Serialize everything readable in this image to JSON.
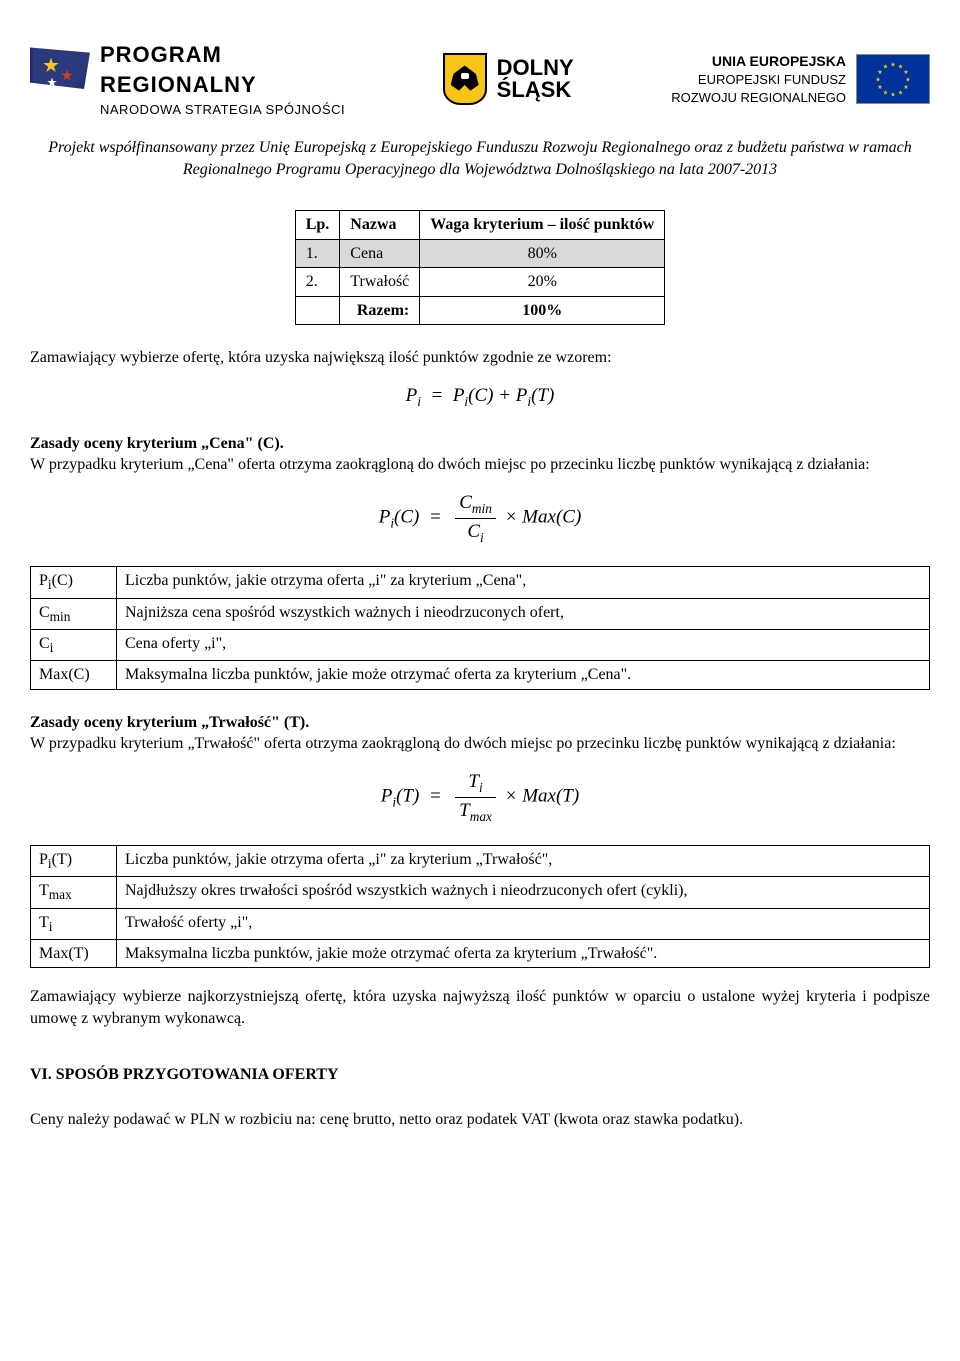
{
  "header": {
    "program": {
      "line1": "PROGRAM",
      "line2": "REGIONALNY",
      "line3": "NARODOWA STRATEGIA SPÓJNOŚCI"
    },
    "dolny_slask": {
      "line1": "DOLNY",
      "line2": "ŚLĄSK"
    },
    "ue": {
      "line1": "UNIA EUROPEJSKA",
      "line2": "EUROPEJSKI FUNDUSZ",
      "line3": "ROZWOJU REGIONALNEGO"
    }
  },
  "funding_note": "Projekt współfinansowany przez Unię Europejską z Europejskiego Funduszu Rozwoju Regionalnego oraz z budżetu państwa w ramach Regionalnego Programu Operacyjnego dla Województwa Dolnośląskiego na lata 2007-2013",
  "criteria_table": {
    "headers": [
      "Lp.",
      "Nazwa",
      "Waga kryterium – ilość punktów"
    ],
    "rows": [
      {
        "lp": "1.",
        "nazwa": "Cena",
        "waga": "80%",
        "shaded": true
      },
      {
        "lp": "2.",
        "nazwa": "Trwałość",
        "waga": "20%",
        "shaded": false
      }
    ],
    "total_label": "Razem:",
    "total_value": "100%"
  },
  "intro_para": "Zamawiający wybierze ofertę, która uzyska największą ilość punktów zgodnie ze wzorem:",
  "formula_total": {
    "lhs": "P",
    "lhs_sub": "i",
    "rhs1": "P",
    "rhs1_sub": "i",
    "rhs1_arg": "(C)",
    "plus": " + ",
    "rhs2": "P",
    "rhs2_sub": "i",
    "rhs2_arg": "(T)"
  },
  "cena": {
    "heading": "Zasady oceny kryterium „Cena\" (C).",
    "para": "W przypadku kryterium „Cena\" oferta otrzyma zaokrągloną do dwóch miejsc po przecinku liczbę punktów wynikającą z działania:",
    "formula": {
      "lhs": "P",
      "lhs_sub": "i",
      "lhs_arg": "(C)",
      "num": "C",
      "num_sub": "min",
      "den": "C",
      "den_sub": "i",
      "times": " × ",
      "max": "Max",
      "max_arg": "(C)"
    },
    "defs": [
      {
        "sym": "Pi(C)",
        "sym_html": "P<sub>i</sub>(C)",
        "desc": "Liczba punktów, jakie otrzyma oferta „i\" za kryterium „Cena\","
      },
      {
        "sym": "Cmin",
        "sym_html": "C<sub>min</sub>",
        "desc": "Najniższa cena spośród wszystkich ważnych i nieodrzuconych ofert,"
      },
      {
        "sym": "Ci",
        "sym_html": "C<sub>i</sub>",
        "desc": "Cena oferty „i\","
      },
      {
        "sym": "Max(C)",
        "sym_html": "Max(C)",
        "desc": "Maksymalna liczba punktów, jakie może otrzymać oferta za kryterium „Cena\"."
      }
    ]
  },
  "trwalosc": {
    "heading": "Zasady oceny kryterium „Trwałość\" (T).",
    "para": "W przypadku kryterium „Trwałość\" oferta otrzyma zaokrągloną do dwóch miejsc po przecinku liczbę punktów wynikającą z działania:",
    "formula": {
      "lhs": "P",
      "lhs_sub": "i",
      "lhs_arg": "(T)",
      "num": "T",
      "num_sub": "i",
      "den": "T",
      "den_sub": "max",
      "times": " × ",
      "max": "Max",
      "max_arg": "(T)"
    },
    "defs": [
      {
        "sym": "Pi(T)",
        "sym_html": "P<sub>i</sub>(T)",
        "desc": "Liczba punktów, jakie otrzyma oferta „i\" za kryterium „Trwałość\","
      },
      {
        "sym": "Tmax",
        "sym_html": "T<sub>max</sub>",
        "desc": "Najdłuższy okres trwałości spośród wszystkich ważnych i nieodrzuconych ofert (cykli),"
      },
      {
        "sym": "Ti",
        "sym_html": "T<sub>i</sub>",
        "desc": "Trwałość oferty „i\","
      },
      {
        "sym": "Max(T)",
        "sym_html": "Max(T)",
        "desc": "Maksymalna liczba punktów, jakie może otrzymać oferta za kryterium „Trwałość\"."
      }
    ]
  },
  "closing_para": "Zamawiający wybierze najkorzystniejszą ofertę, która uzyska najwyższą ilość punktów w oparciu o ustalone wyżej kryteria i podpisze umowę z wybranym wykonawcą.",
  "section6_heading": "VI. SPOSÓB PRZYGOTOWANIA OFERTY",
  "section6_para": "Ceny należy podawać w PLN w rozbiciu na: cenę brutto, netto oraz podatek VAT (kwota oraz stawka podatku)."
}
